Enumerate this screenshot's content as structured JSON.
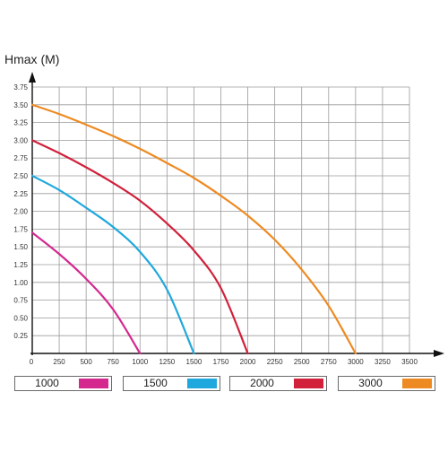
{
  "chart_data": {
    "type": "line",
    "ylabel": "Hmax (M)",
    "xlabel": "",
    "xlim": [
      0,
      3500
    ],
    "ylim": [
      0,
      3.75
    ],
    "x_ticks": [
      "250",
      "500",
      "750",
      "1000",
      "1250",
      "1500",
      "1750",
      "2000",
      "2250",
      "2500",
      "2750",
      "3000",
      "3250",
      "3500"
    ],
    "y_ticks": [
      "0.25",
      "0.50",
      "0.75",
      "1.00",
      "1.25",
      "1.50",
      "1.75",
      "2.00",
      "2.25",
      "2.50",
      "2.75",
      "3.00",
      "3.25",
      "3.50",
      "3.75"
    ],
    "x_origin_label": "0",
    "grid": true,
    "legend_position": "bottom",
    "series": [
      {
        "name": "1000",
        "color": "#d4288f",
        "x": [
          0,
          250,
          500,
          750,
          1000
        ],
        "y": [
          1.7,
          1.4,
          1.05,
          0.62,
          0.0
        ]
      },
      {
        "name": "1500",
        "color": "#1fa8dd",
        "x": [
          0,
          250,
          500,
          750,
          1000,
          1250,
          1500
        ],
        "y": [
          2.5,
          2.3,
          2.05,
          1.78,
          1.43,
          0.9,
          0.0
        ]
      },
      {
        "name": "2000",
        "color": "#d1213b",
        "x": [
          0,
          250,
          500,
          750,
          1000,
          1250,
          1500,
          1750,
          2000
        ],
        "y": [
          3.0,
          2.82,
          2.62,
          2.4,
          2.15,
          1.83,
          1.45,
          0.92,
          0.0
        ]
      },
      {
        "name": "3000",
        "color": "#ee8a22",
        "x": [
          0,
          250,
          500,
          750,
          1000,
          1250,
          1500,
          1750,
          2000,
          2250,
          2500,
          2750,
          3000
        ],
        "y": [
          3.5,
          3.37,
          3.22,
          3.06,
          2.88,
          2.68,
          2.47,
          2.22,
          1.94,
          1.6,
          1.18,
          0.67,
          0.0
        ]
      }
    ]
  }
}
